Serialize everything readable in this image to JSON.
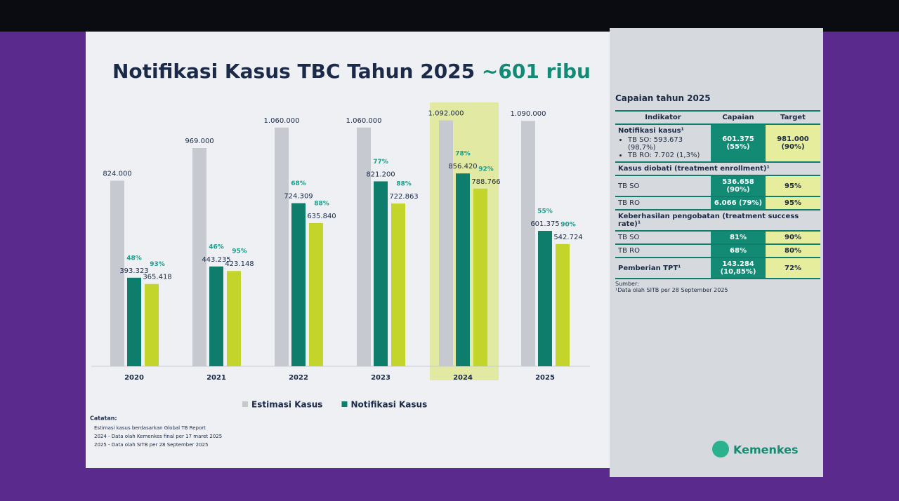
{
  "title": "Notifikasi Kasus TBC Tahun 2025",
  "title_highlight": "~601 ribu",
  "chart_data": {
    "type": "bar",
    "categories": [
      "2020",
      "2021",
      "2022",
      "2023",
      "2024",
      "2025"
    ],
    "highlight": "2024",
    "ylim": [
      0,
      1100000
    ],
    "series": [
      {
        "name": "Estimasi Kasus",
        "color": "#c6c9cf",
        "values": [
          824000,
          969000,
          1060000,
          1060000,
          1092000,
          1090000
        ],
        "value_labels": [
          "824.000",
          "969.000",
          "1.060.000",
          "1.060.000",
          "1.092.000",
          "1.090.000"
        ]
      },
      {
        "name": "Notifikasi Kasus",
        "color": "#0e7d6c",
        "values": [
          393323,
          443235,
          724309,
          821200,
          856420,
          601375
        ],
        "value_labels": [
          "393.323",
          "443.235",
          "724.309",
          "821.200",
          "856.420",
          "601.375"
        ],
        "pct_labels": [
          "48%",
          "46%",
          "68%",
          "77%",
          "78%",
          "55%"
        ]
      },
      {
        "color": "#c3d52a",
        "values": [
          365418,
          423148,
          635840,
          722863,
          788766,
          542724
        ],
        "value_labels": [
          "365.418",
          "423.148",
          "635.840",
          "722.863",
          "788.766",
          "542.724"
        ],
        "pct_labels": [
          "93%",
          "95%",
          "88%",
          "88%",
          "92%",
          "90%"
        ]
      }
    ]
  },
  "notes": {
    "title": "Catatan:",
    "items": [
      "Estimasi kasus berdasarkan Global TB Report",
      "2024 - Data olah Kemenkes final per 17 maret 2025",
      "2025 - Data olah SITB per 28 September 2025"
    ]
  },
  "panel": {
    "title": "Capaian tahun 2025",
    "headers": [
      "Indikator",
      "Capaian",
      "Target"
    ],
    "notif": {
      "label": "Notifikasi kasus¹",
      "items": [
        "TB SO: 593.673 (98,7%)",
        "TB RO: 7.702 (1,3%)"
      ],
      "capaian": "601.375 (55%)",
      "target": "981.000 (90%)"
    },
    "enroll": {
      "label": "Kasus diobati (treatment enrollment)¹",
      "rows": [
        [
          "TB SO",
          "536.658 (90%)",
          "95%"
        ],
        [
          "TB RO",
          "6.066 (79%)",
          "95%"
        ]
      ]
    },
    "success": {
      "label": "Keberhasilan pengobatan (treatment success rate)¹",
      "rows": [
        [
          "TB SO",
          "81%",
          "90%"
        ],
        [
          "TB RO",
          "68%",
          "80%"
        ]
      ]
    },
    "tpt": [
      "Pemberian TPT¹",
      "143.284 (10,85%)",
      "72%"
    ],
    "source": [
      "Sumber:",
      "¹Data olah SITB per 28 September 2025"
    ]
  },
  "logo": "Kemenkes"
}
